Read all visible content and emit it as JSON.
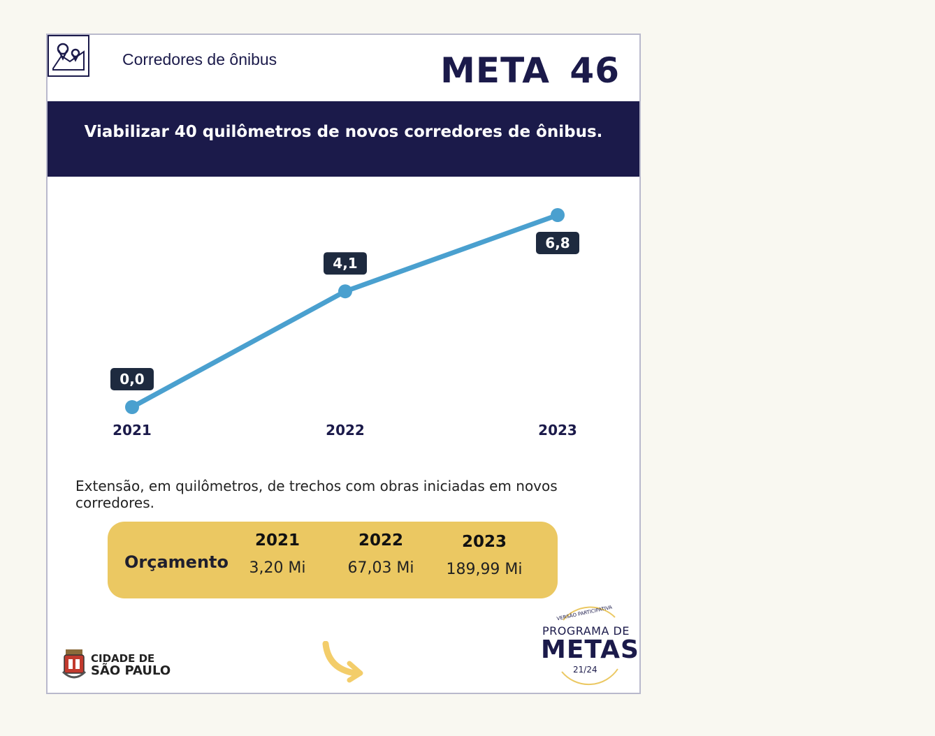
{
  "header": {
    "topic": "Corredores de ônibus",
    "meta_title": "META 46",
    "topic_icon": "map-pin-icon"
  },
  "goal": {
    "text": "Viabilizar 40 quilômetros de novos corredores de ônibus."
  },
  "chart_data": {
    "type": "line",
    "categories": [
      "2021",
      "2022",
      "2023"
    ],
    "values": [
      0.0,
      4.1,
      6.8
    ],
    "data_labels": [
      "0,0",
      "4,1",
      "6,8"
    ],
    "title": "",
    "xlabel": "",
    "ylabel": "",
    "grid": false,
    "line_color": "#4aa0cf",
    "label_bg_color": "#1e2a3f"
  },
  "indicator_text": "Extensão, em quilômetros,  de trechos com obras iniciadas em novos corredores.",
  "budget": {
    "label": "Orçamento",
    "columns": [
      {
        "year": "2021",
        "value": "3,20 Mi"
      },
      {
        "year": "2022",
        "value": "67,03 Mi"
      },
      {
        "year": "2023",
        "value": "189,99 Mi"
      }
    ],
    "bg_color": "#ebc862"
  },
  "footer": {
    "city_line1": "CIDADE DE",
    "city_line2": "SÃO PAULO",
    "next_icon": "curved-arrow-icon",
    "program_tag": "VERSÃO PARTICIPATIVA",
    "program_line1": "PROGRAMA DE",
    "program_line2": "METAS",
    "program_period": "21/24"
  },
  "colors": {
    "navy": "#1b1a4a",
    "background": "#f9f8f1",
    "arrow": "#f3cd6a"
  }
}
